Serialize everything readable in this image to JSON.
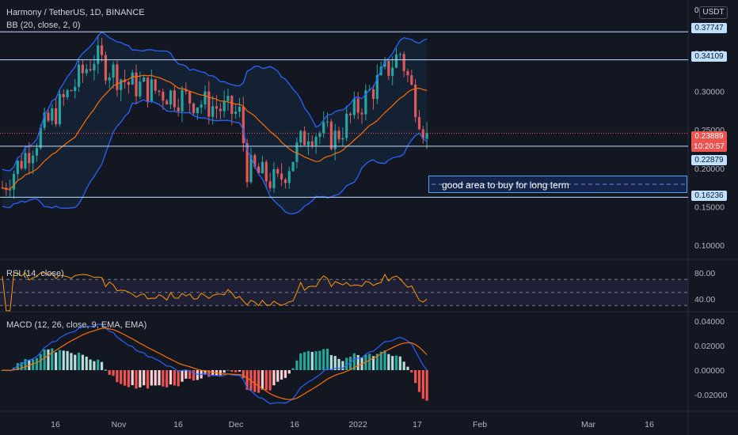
{
  "header": {
    "symbol_title": "Harmony / TetherUS, 1D, BINANCE",
    "bb_label": "BB (20, close, 2, 0)",
    "rsi_label": "RSI (14, close)",
    "macd_label": "MACD (12, 26, close, 9, EMA, EMA)"
  },
  "price_scale": {
    "currency": "USDT",
    "zero_label": "0",
    "ticks": [
      "0.35000",
      "0.30000",
      "0.25000",
      "0.20000",
      "0.15000",
      "0.10000"
    ],
    "levels": [
      {
        "label": "0.37747",
        "value": 0.37747
      },
      {
        "label": "0.34109",
        "value": 0.34109
      },
      {
        "label": "0.22879",
        "value": 0.22879
      },
      {
        "label": "0.16236",
        "value": 0.16236
      }
    ],
    "current_price": "0.23889",
    "countdown": "10:20:57"
  },
  "rsi_scale": {
    "ticks": [
      "80.00",
      "40.00"
    ]
  },
  "macd_scale": {
    "ticks": [
      "0.04000",
      "0.02000",
      "0.00000",
      "-0.02000"
    ]
  },
  "time_axis": {
    "labels": [
      "16",
      "Nov",
      "16",
      "Dec",
      "16",
      "2022",
      "17",
      "Feb",
      "Mar",
      "16"
    ]
  },
  "annotation": {
    "text": "good area to buy for long term"
  },
  "colors": {
    "background": "#131722",
    "up": "#26a69a",
    "down": "#ef5350",
    "bb_band": "#2962ff",
    "bb_basis": "#ff6d00",
    "rsi_line": "#ff9800",
    "rsi_fill": "#7e57c2",
    "macd_line": "#2962ff",
    "signal_line": "#ff6d00",
    "level_line": "#bfe1ff"
  },
  "chart_data": {
    "type": "candlestick",
    "price_range": [
      0.09,
      0.42
    ],
    "close_path_keypoints": [
      {
        "date": "Oct 1",
        "price": 0.175
      },
      {
        "date": "Oct 22",
        "price": 0.345
      },
      {
        "date": "Nov 5",
        "price": 0.31
      },
      {
        "date": "Nov 20",
        "price": 0.29
      },
      {
        "date": "Dec 4",
        "price": 0.27
      },
      {
        "date": "Dec 6",
        "price": 0.2
      },
      {
        "date": "Dec 15",
        "price": 0.18
      },
      {
        "date": "Dec 25",
        "price": 0.25
      },
      {
        "date": "Jan 1",
        "price": 0.24
      },
      {
        "date": "Jan 15",
        "price": 0.35
      },
      {
        "date": "Jan 21",
        "price": 0.23889
      }
    ],
    "rsi_range": [
      20,
      100
    ],
    "macd_range": [
      -0.03,
      0.045
    ]
  }
}
